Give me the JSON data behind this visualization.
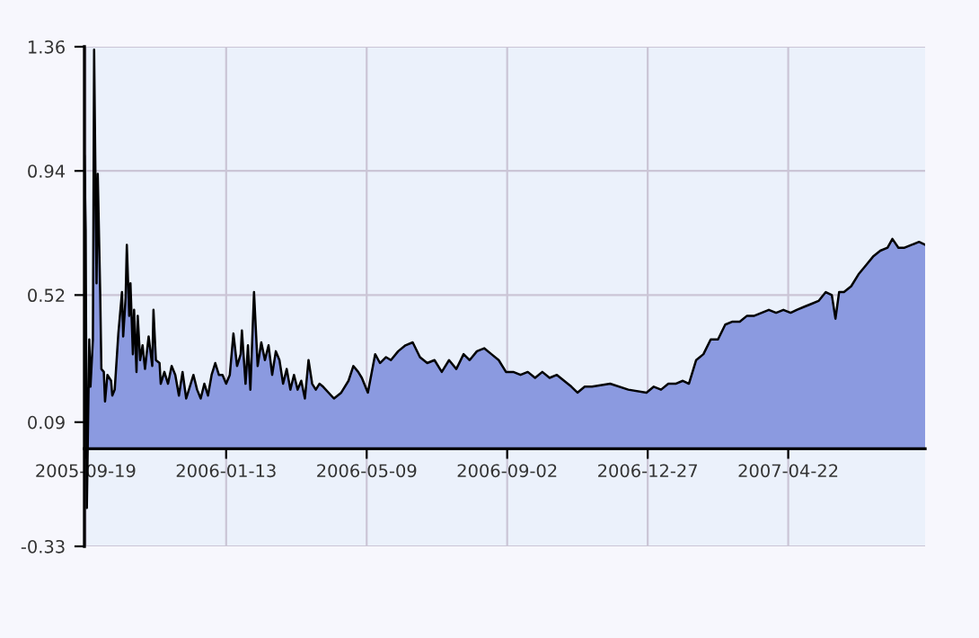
{
  "chart_data": {
    "type": "area",
    "x": [
      "2005-09-18",
      "2005-09-19",
      "2005-09-20",
      "2005-09-22",
      "2005-09-23",
      "2005-09-25",
      "2005-09-26",
      "2005-09-28",
      "2005-09-29",
      "2005-10-01",
      "2005-10-02",
      "2005-10-04",
      "2005-10-05",
      "2005-10-07",
      "2005-10-10",
      "2005-10-11",
      "2005-10-13",
      "2005-10-16",
      "2005-10-19",
      "2005-10-20",
      "2005-10-22",
      "2005-10-23",
      "2005-10-25",
      "2005-10-26",
      "2005-10-28",
      "2005-10-29",
      "2005-10-31",
      "2005-11-01",
      "2005-11-03",
      "2005-11-05",
      "2005-11-07",
      "2005-11-10",
      "2005-11-13",
      "2005-11-14",
      "2005-11-16",
      "2005-11-19",
      "2005-11-20",
      "2005-11-23",
      "2005-11-26",
      "2005-11-29",
      "2005-12-02",
      "2005-12-05",
      "2005-12-08",
      "2005-12-11",
      "2005-12-14",
      "2005-12-17",
      "2005-12-20",
      "2005-12-23",
      "2005-12-26",
      "2005-12-29",
      "2006-01-01",
      "2006-01-04",
      "2006-01-07",
      "2006-01-10",
      "2006-01-13",
      "2006-01-16",
      "2006-01-19",
      "2006-01-22",
      "2006-01-25",
      "2006-01-26",
      "2006-01-29",
      "2006-01-31",
      "2006-02-02",
      "2006-02-05",
      "2006-02-08",
      "2006-02-11",
      "2006-02-14",
      "2006-02-17",
      "2006-02-20",
      "2006-02-23",
      "2006-02-26",
      "2006-03-01",
      "2006-03-04",
      "2006-03-07",
      "2006-03-10",
      "2006-03-13",
      "2006-03-16",
      "2006-03-19",
      "2006-03-22",
      "2006-03-25",
      "2006-03-28",
      "2006-03-31",
      "2006-04-03",
      "2006-04-12",
      "2006-04-18",
      "2006-04-24",
      "2006-04-28",
      "2006-05-02",
      "2006-05-05",
      "2006-05-10",
      "2006-05-16",
      "2006-05-20",
      "2006-05-25",
      "2006-05-29",
      "2006-06-04",
      "2006-06-10",
      "2006-06-16",
      "2006-06-22",
      "2006-06-28",
      "2006-07-04",
      "2006-07-10",
      "2006-07-16",
      "2006-07-22",
      "2006-07-28",
      "2006-08-02",
      "2006-08-08",
      "2006-08-14",
      "2006-08-20",
      "2006-08-26",
      "2006-09-01",
      "2006-09-07",
      "2006-09-13",
      "2006-09-19",
      "2006-09-25",
      "2006-10-01",
      "2006-10-07",
      "2006-10-13",
      "2006-10-19",
      "2006-10-25",
      "2006-10-30",
      "2006-11-05",
      "2006-11-11",
      "2006-11-26",
      "2006-12-11",
      "2006-12-26",
      "2007-01-01",
      "2007-01-07",
      "2007-01-13",
      "2007-01-19",
      "2007-01-25",
      "2007-01-30",
      "2007-02-05",
      "2007-02-11",
      "2007-02-17",
      "2007-02-23",
      "2007-03-01",
      "2007-03-07",
      "2007-03-13",
      "2007-03-19",
      "2007-03-25",
      "2007-03-31",
      "2007-04-06",
      "2007-04-12",
      "2007-04-18",
      "2007-04-24",
      "2007-04-29",
      "2007-05-05",
      "2007-05-11",
      "2007-05-17",
      "2007-05-23",
      "2007-05-28",
      "2007-05-31",
      "2007-06-03",
      "2007-06-07",
      "2007-06-13",
      "2007-06-19",
      "2007-06-25",
      "2007-07-01",
      "2007-07-07",
      "2007-07-13",
      "2007-07-17",
      "2007-07-22",
      "2007-07-27",
      "2007-08-02",
      "2007-08-08",
      "2007-08-13"
    ],
    "series": [
      {
        "color": "#8b9ae0",
        "values": [
          0.99,
          0.74,
          -0.2,
          0.37,
          0.21,
          0.37,
          1.35,
          0.56,
          0.93,
          0.53,
          0.27,
          0.26,
          0.16,
          0.25,
          0.23,
          0.18,
          0.2,
          0.39,
          0.53,
          0.38,
          0.51,
          0.69,
          0.45,
          0.56,
          0.32,
          0.47,
          0.26,
          0.45,
          0.3,
          0.35,
          0.27,
          0.38,
          0.28,
          0.47,
          0.3,
          0.29,
          0.22,
          0.26,
          0.22,
          0.28,
          0.25,
          0.18,
          0.26,
          0.17,
          0.21,
          0.25,
          0.2,
          0.17,
          0.22,
          0.18,
          0.25,
          0.29,
          0.25,
          0.25,
          0.22,
          0.25,
          0.39,
          0.28,
          0.32,
          0.4,
          0.22,
          0.35,
          0.2,
          0.53,
          0.28,
          0.36,
          0.3,
          0.35,
          0.25,
          0.33,
          0.3,
          0.22,
          0.27,
          0.2,
          0.25,
          0.2,
          0.23,
          0.17,
          0.3,
          0.22,
          0.2,
          0.22,
          0.21,
          0.17,
          0.19,
          0.23,
          0.28,
          0.26,
          0.24,
          0.19,
          0.32,
          0.29,
          0.31,
          0.3,
          0.33,
          0.35,
          0.36,
          0.31,
          0.29,
          0.3,
          0.26,
          0.3,
          0.27,
          0.32,
          0.3,
          0.33,
          0.34,
          0.32,
          0.3,
          0.26,
          0.26,
          0.25,
          0.26,
          0.24,
          0.26,
          0.24,
          0.25,
          0.23,
          0.21,
          0.19,
          0.21,
          0.21,
          0.22,
          0.2,
          0.19,
          0.21,
          0.2,
          0.22,
          0.22,
          0.23,
          0.22,
          0.3,
          0.32,
          0.37,
          0.37,
          0.42,
          0.43,
          0.43,
          0.45,
          0.45,
          0.46,
          0.47,
          0.46,
          0.47,
          0.46,
          0.47,
          0.48,
          0.49,
          0.5,
          0.53,
          0.52,
          0.44,
          0.53,
          0.53,
          0.55,
          0.59,
          0.62,
          0.65,
          0.67,
          0.68,
          0.71,
          0.68,
          0.68,
          0.69,
          0.7,
          0.69
        ]
      }
    ],
    "xlim": [
      "2005-09-18",
      "2007-08-13"
    ],
    "xticks": [
      {
        "value": "2005-09-19",
        "label": "2005-09-19"
      },
      {
        "value": "2006-01-13",
        "label": "2006-01-13"
      },
      {
        "value": "2006-05-09",
        "label": "2006-05-09"
      },
      {
        "value": "2006-09-02",
        "label": "2006-09-02"
      },
      {
        "value": "2006-12-27",
        "label": "2006-12-27"
      },
      {
        "value": "2007-04-22",
        "label": "2007-04-22"
      }
    ],
    "ylim": [
      -0.33,
      1.36
    ],
    "yticks": [
      -0.33,
      0.09,
      0.52,
      0.94,
      1.36
    ],
    "grid": true
  }
}
